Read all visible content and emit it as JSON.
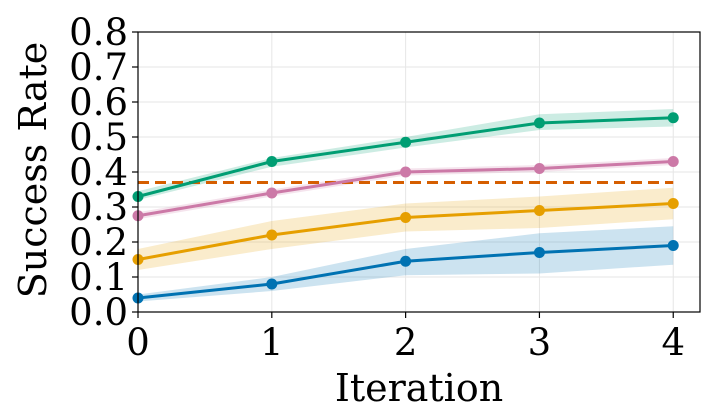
{
  "chart_data": {
    "type": "line",
    "title": "",
    "xlabel": "Iteration",
    "ylabel": "Success Rate",
    "x": [
      0,
      1,
      2,
      3,
      4
    ],
    "xlim": [
      0,
      4.2
    ],
    "ylim": [
      0,
      0.8
    ],
    "xticks": [
      "0",
      "1",
      "2",
      "3",
      "4"
    ],
    "yticks": [
      "0.0",
      "0.1",
      "0.2",
      "0.3",
      "0.4",
      "0.5",
      "0.6",
      "0.7",
      "0.8"
    ],
    "grid": true,
    "series": [
      {
        "name": "green",
        "color": "#009e73",
        "values": [
          0.33,
          0.43,
          0.485,
          0.54,
          0.555
        ],
        "lower": [
          0.32,
          0.415,
          0.47,
          0.52,
          0.53
        ],
        "upper": [
          0.345,
          0.44,
          0.5,
          0.565,
          0.58
        ]
      },
      {
        "name": "pink",
        "color": "#cc79a7",
        "values": [
          0.275,
          0.34,
          0.4,
          0.41,
          0.43
        ],
        "lower": [
          0.265,
          0.33,
          0.39,
          0.4,
          0.42
        ],
        "upper": [
          0.285,
          0.35,
          0.41,
          0.42,
          0.44
        ]
      },
      {
        "name": "orange",
        "color": "#e69f00",
        "values": [
          0.15,
          0.22,
          0.27,
          0.29,
          0.31
        ],
        "lower": [
          0.12,
          0.18,
          0.23,
          0.24,
          0.265
        ],
        "upper": [
          0.18,
          0.26,
          0.31,
          0.33,
          0.355
        ]
      },
      {
        "name": "blue",
        "color": "#0072b2",
        "values": [
          0.04,
          0.08,
          0.145,
          0.17,
          0.19
        ],
        "lower": [
          0.03,
          0.06,
          0.105,
          0.11,
          0.135
        ],
        "upper": [
          0.05,
          0.1,
          0.18,
          0.225,
          0.245
        ]
      }
    ],
    "baseline": {
      "name": "baseline",
      "color": "#d55e00",
      "value": 0.37,
      "style": "dashed"
    }
  }
}
